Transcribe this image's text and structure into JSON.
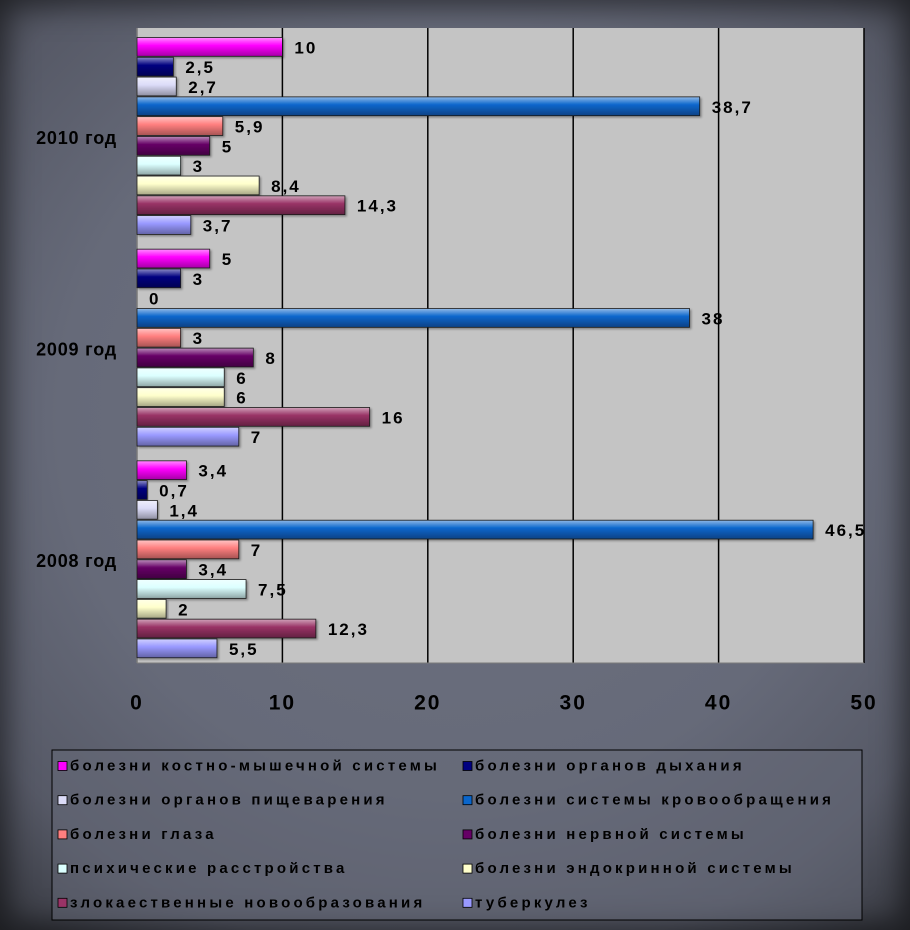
{
  "chart_data": {
    "type": "bar",
    "orientation": "horizontal",
    "categories": [
      "2010 год",
      "2009 год",
      "2008 год"
    ],
    "series": [
      {
        "name": "болезни костно-мышечной системы",
        "color": "#ff00ff",
        "values": [
          10,
          5,
          3.4
        ]
      },
      {
        "name": "болезни органов дыхания",
        "color": "#000080",
        "values": [
          2.5,
          3,
          0.7
        ]
      },
      {
        "name": "болезни органов пищеварения",
        "color": "#dcdcf8",
        "values": [
          2.7,
          0,
          1.4
        ]
      },
      {
        "name": "болезни системы кровообращения",
        "color": "#0a66cc",
        "values": [
          38.7,
          38,
          46.5
        ]
      },
      {
        "name": "болезни глаза",
        "color": "#ff7f7f",
        "values": [
          5.9,
          3,
          7
        ]
      },
      {
        "name": "болезни нервной системы",
        "color": "#660066",
        "values": [
          5,
          8,
          3.4
        ]
      },
      {
        "name": "психические расстройства",
        "color": "#dcffff",
        "values": [
          3,
          6,
          7.5
        ]
      },
      {
        "name": "болезни эндокринной системы",
        "color": "#ffffcc",
        "values": [
          8.4,
          6,
          2
        ]
      },
      {
        "name": "злокаественные новообразования",
        "color": "#993366",
        "values": [
          14.3,
          16,
          12.3
        ]
      },
      {
        "name": "туберкулез",
        "color": "#9999ff",
        "values": [
          3.7,
          7,
          5.5
        ]
      }
    ],
    "xlim": [
      0,
      50
    ],
    "x_ticks": [
      0,
      10,
      20,
      30,
      40,
      50
    ],
    "grid": true,
    "data_labels": true,
    "legend": "bottom",
    "legend_columns": 2,
    "plot_background": "#c4c4c4"
  }
}
